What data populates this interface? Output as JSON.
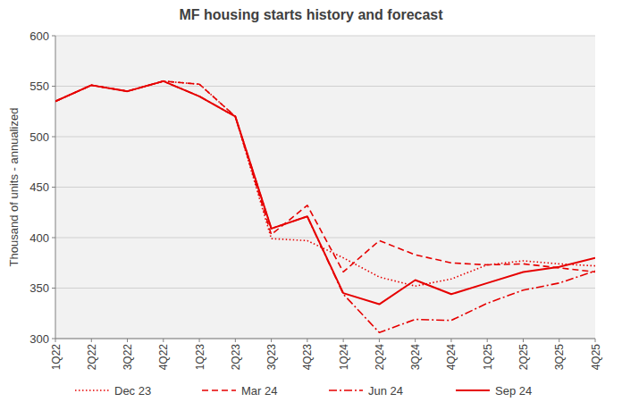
{
  "chart_data": {
    "type": "line",
    "title": "MF housing starts history and forecast",
    "y_label": "Thousand of units - annualized",
    "categories": [
      "1Q22",
      "2Q22",
      "3Q22",
      "4Q22",
      "1Q23",
      "2Q23",
      "3Q23",
      "4Q23",
      "1Q24",
      "2Q24",
      "3Q24",
      "4Q24",
      "1Q25",
      "2Q25",
      "3Q25",
      "4Q25"
    ],
    "series": [
      {
        "name": "Dec 23",
        "color": "#e60000",
        "line_style": "dotted",
        "values": [
          535,
          551,
          545,
          555,
          552,
          520,
          399,
          397,
          380,
          361,
          352,
          359,
          373,
          377,
          374,
          372
        ]
      },
      {
        "name": "Mar 24",
        "color": "#e60000",
        "line_style": "dashed",
        "values": [
          535,
          551,
          545,
          555,
          552,
          520,
          403,
          432,
          366,
          397,
          383,
          375,
          373,
          374,
          370,
          366
        ]
      },
      {
        "name": "Jun 24",
        "color": "#e60000",
        "line_style": "dashdot",
        "values": [
          535,
          551,
          545,
          555,
          540,
          520,
          409,
          421,
          344,
          306,
          319,
          318,
          335,
          348,
          355,
          367
        ]
      },
      {
        "name": "Sep 24",
        "color": "#e60000",
        "line_style": "solid",
        "values": [
          535,
          551,
          545,
          555,
          540,
          520,
          409,
          421,
          345,
          334,
          358,
          344,
          355,
          366,
          371,
          380
        ]
      }
    ],
    "ylim": [
      300,
      600
    ],
    "yticks": [
      300,
      350,
      400,
      450,
      500,
      550,
      600
    ],
    "grid": true,
    "legend": "bottom"
  }
}
